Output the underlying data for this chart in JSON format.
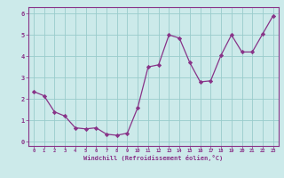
{
  "x": [
    0,
    1,
    2,
    3,
    4,
    5,
    6,
    7,
    8,
    9,
    10,
    11,
    12,
    13,
    14,
    15,
    16,
    17,
    18,
    19,
    20,
    21,
    22,
    23
  ],
  "y": [
    2.35,
    2.15,
    1.4,
    1.2,
    0.65,
    0.6,
    0.65,
    0.35,
    0.3,
    0.4,
    1.6,
    3.5,
    3.6,
    5.0,
    4.85,
    3.7,
    2.8,
    2.85,
    4.05,
    5.0,
    4.2,
    4.2,
    5.05,
    5.9
  ],
  "line_color": "#883388",
  "marker": "D",
  "marker_size": 2.2,
  "bg_color": "#cceaea",
  "grid_color": "#99cccc",
  "xlabel": "Windchill (Refroidissement éolien,°C)",
  "xlabel_color": "#883388",
  "tick_color": "#883388",
  "axis_color": "#883388",
  "ylim": [
    -0.2,
    6.3
  ],
  "xlim": [
    -0.5,
    23.5
  ],
  "yticks": [
    0,
    1,
    2,
    3,
    4,
    5,
    6
  ],
  "xticks": [
    0,
    1,
    2,
    3,
    4,
    5,
    6,
    7,
    8,
    9,
    10,
    11,
    12,
    13,
    14,
    15,
    16,
    17,
    18,
    19,
    20,
    21,
    22,
    23
  ]
}
